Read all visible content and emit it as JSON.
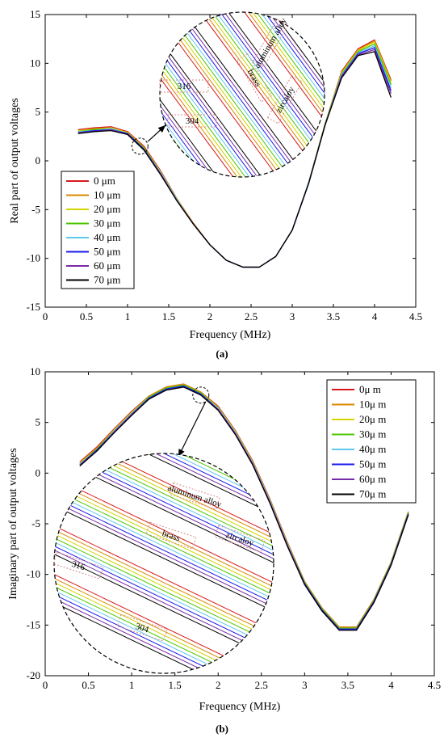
{
  "chart_data": [
    {
      "type": "line",
      "caption": "(a)",
      "xlabel": "Frequency (MHz)",
      "ylabel": "Real part of output voltages",
      "xlim": [
        0,
        4.5
      ],
      "ylim": [
        -15,
        15
      ],
      "xticks": [
        "0",
        "0.5",
        "1",
        "1.5",
        "2",
        "2.5",
        "3",
        "3.5",
        "4",
        "4.5"
      ],
      "yticks": [
        "15",
        "10",
        "5",
        "0",
        "-5",
        "-10",
        "-15"
      ],
      "legend_position": "lower-left",
      "x": [
        0.4,
        0.6,
        0.8,
        1.0,
        1.2,
        1.4,
        1.6,
        1.8,
        2.0,
        2.2,
        2.4,
        2.6,
        2.8,
        3.0,
        3.2,
        3.4,
        3.6,
        3.8,
        4.0,
        4.2
      ],
      "series": [
        {
          "name": "0 μm",
          "color": "#d7191c",
          "values": [
            3.2,
            3.4,
            3.5,
            3.0,
            1.5,
            -1.0,
            -3.9,
            -6.4,
            -8.6,
            -10.2,
            -10.9,
            -10.9,
            -9.8,
            -7.1,
            -2.2,
            3.8,
            9.2,
            11.5,
            12.4,
            8.3
          ]
        },
        {
          "name": "10 μm",
          "color": "#d98a00",
          "values": [
            3.1,
            3.3,
            3.4,
            2.9,
            1.4,
            -1.1,
            -3.9,
            -6.4,
            -8.6,
            -10.2,
            -10.9,
            -10.9,
            -9.8,
            -7.1,
            -2.2,
            3.8,
            9.1,
            11.4,
            12.3,
            8.2
          ]
        },
        {
          "name": "20 μm",
          "color": "#d4d400",
          "values": [
            3.1,
            3.2,
            3.4,
            2.9,
            1.3,
            -1.1,
            -4.0,
            -6.5,
            -8.6,
            -10.2,
            -10.9,
            -10.9,
            -9.8,
            -7.1,
            -2.2,
            3.8,
            9.0,
            11.3,
            12.2,
            8.0
          ]
        },
        {
          "name": "30 μm",
          "color": "#4cc600",
          "values": [
            3.0,
            3.2,
            3.3,
            2.8,
            1.3,
            -1.2,
            -4.0,
            -6.5,
            -8.6,
            -10.2,
            -10.9,
            -10.9,
            -9.8,
            -7.1,
            -2.2,
            3.8,
            8.9,
            11.2,
            12.0,
            7.8
          ]
        },
        {
          "name": "40 μm",
          "color": "#5fc9f0",
          "values": [
            3.0,
            3.1,
            3.3,
            2.8,
            1.2,
            -1.2,
            -4.0,
            -6.5,
            -8.6,
            -10.2,
            -10.9,
            -10.9,
            -9.8,
            -7.1,
            -2.2,
            3.7,
            8.8,
            11.1,
            11.8,
            7.5
          ]
        },
        {
          "name": "50 μm",
          "color": "#1a1aee",
          "values": [
            2.9,
            3.1,
            3.2,
            2.8,
            1.2,
            -1.3,
            -4.1,
            -6.5,
            -8.6,
            -10.2,
            -10.9,
            -10.9,
            -9.8,
            -7.1,
            -2.3,
            3.7,
            8.7,
            11.0,
            11.6,
            7.2
          ]
        },
        {
          "name": "60 μm",
          "color": "#7a2aa8",
          "values": [
            2.9,
            3.0,
            3.2,
            2.7,
            1.1,
            -1.3,
            -4.1,
            -6.5,
            -8.6,
            -10.2,
            -10.9,
            -10.9,
            -9.8,
            -7.1,
            -2.3,
            3.7,
            8.6,
            10.9,
            11.4,
            6.9
          ]
        },
        {
          "name": "70 μm",
          "color": "#000000",
          "values": [
            2.8,
            3.0,
            3.1,
            2.7,
            1.1,
            -1.4,
            -4.1,
            -6.5,
            -8.6,
            -10.2,
            -10.9,
            -10.9,
            -9.8,
            -7.1,
            -2.3,
            3.7,
            8.5,
            10.8,
            11.2,
            6.5
          ]
        }
      ],
      "zoom_annotations": [
        "aluminum alloy",
        "brass",
        "zircaloy",
        "316",
        "304"
      ]
    },
    {
      "type": "line",
      "caption": "(b)",
      "xlabel": "Frequency (MHz)",
      "ylabel": "Imaginary part of output voltages",
      "xlim": [
        0,
        4.5
      ],
      "ylim": [
        -20,
        10
      ],
      "xticks": [
        "0",
        "0.5",
        "1",
        "1.5",
        "2",
        "2.5",
        "3",
        "3.5",
        "4",
        "4.5"
      ],
      "yticks": [
        "10",
        "5",
        "0",
        "-5",
        "-10",
        "-15",
        "-20"
      ],
      "legend_position": "top-right",
      "x": [
        0.4,
        0.6,
        0.8,
        1.0,
        1.2,
        1.4,
        1.6,
        1.8,
        2.0,
        2.2,
        2.4,
        2.6,
        2.8,
        3.0,
        3.2,
        3.4,
        3.6,
        3.8,
        4.0,
        4.2
      ],
      "series": [
        {
          "name": "0μ m",
          "color": "#d7191c",
          "values": [
            1.1,
            2.6,
            4.4,
            6.1,
            7.6,
            8.5,
            8.8,
            8.0,
            6.6,
            4.2,
            1.2,
            -2.6,
            -6.8,
            -10.7,
            -13.3,
            -15.2,
            -15.2,
            -12.5,
            -8.8,
            -3.8
          ]
        },
        {
          "name": "10μ m",
          "color": "#d98a00",
          "values": [
            1.0,
            2.5,
            4.3,
            6.0,
            7.6,
            8.5,
            8.8,
            8.0,
            6.5,
            4.1,
            1.1,
            -2.7,
            -6.9,
            -10.7,
            -13.3,
            -15.2,
            -15.2,
            -12.5,
            -8.8,
            -3.8
          ]
        },
        {
          "name": "20μ m",
          "color": "#d4d400",
          "values": [
            1.0,
            2.4,
            4.3,
            6.0,
            7.5,
            8.4,
            8.7,
            7.9,
            6.5,
            4.1,
            1.1,
            -2.7,
            -6.9,
            -10.8,
            -13.4,
            -15.3,
            -15.3,
            -12.6,
            -8.9,
            -3.9
          ]
        },
        {
          "name": "30μ m",
          "color": "#4cc600",
          "values": [
            0.9,
            2.4,
            4.2,
            5.9,
            7.5,
            8.4,
            8.7,
            7.9,
            6.4,
            4.0,
            1.0,
            -2.8,
            -7.0,
            -10.8,
            -13.4,
            -15.3,
            -15.3,
            -12.6,
            -8.9,
            -3.9
          ]
        },
        {
          "name": "40μ m",
          "color": "#5fc9f0",
          "values": [
            0.9,
            2.3,
            4.2,
            5.9,
            7.4,
            8.3,
            8.6,
            7.8,
            6.4,
            4.0,
            1.0,
            -2.8,
            -7.0,
            -10.9,
            -13.5,
            -15.4,
            -15.4,
            -12.7,
            -9.0,
            -4.0
          ]
        },
        {
          "name": "50μ m",
          "color": "#1a1aee",
          "values": [
            0.8,
            2.3,
            4.1,
            5.8,
            7.4,
            8.3,
            8.6,
            7.8,
            6.3,
            3.9,
            0.9,
            -2.9,
            -7.1,
            -10.9,
            -13.5,
            -15.4,
            -15.4,
            -12.7,
            -9.0,
            -4.0
          ]
        },
        {
          "name": "60μ m",
          "color": "#7a2aa8",
          "values": [
            0.8,
            2.2,
            4.1,
            5.8,
            7.3,
            8.2,
            8.5,
            7.7,
            6.3,
            3.9,
            0.9,
            -2.9,
            -7.1,
            -11.0,
            -13.6,
            -15.5,
            -15.5,
            -12.8,
            -9.1,
            -4.1
          ]
        },
        {
          "name": "70μ m",
          "color": "#000000",
          "values": [
            0.7,
            2.2,
            4.0,
            5.7,
            7.3,
            8.2,
            8.5,
            7.7,
            6.2,
            3.8,
            0.8,
            -3.0,
            -7.2,
            -11.0,
            -13.6,
            -15.5,
            -15.5,
            -12.8,
            -9.1,
            -4.1
          ]
        }
      ],
      "zoom_annotations": [
        "aluminum alloy",
        "brass",
        "zircaloy",
        "316",
        "304"
      ]
    }
  ]
}
